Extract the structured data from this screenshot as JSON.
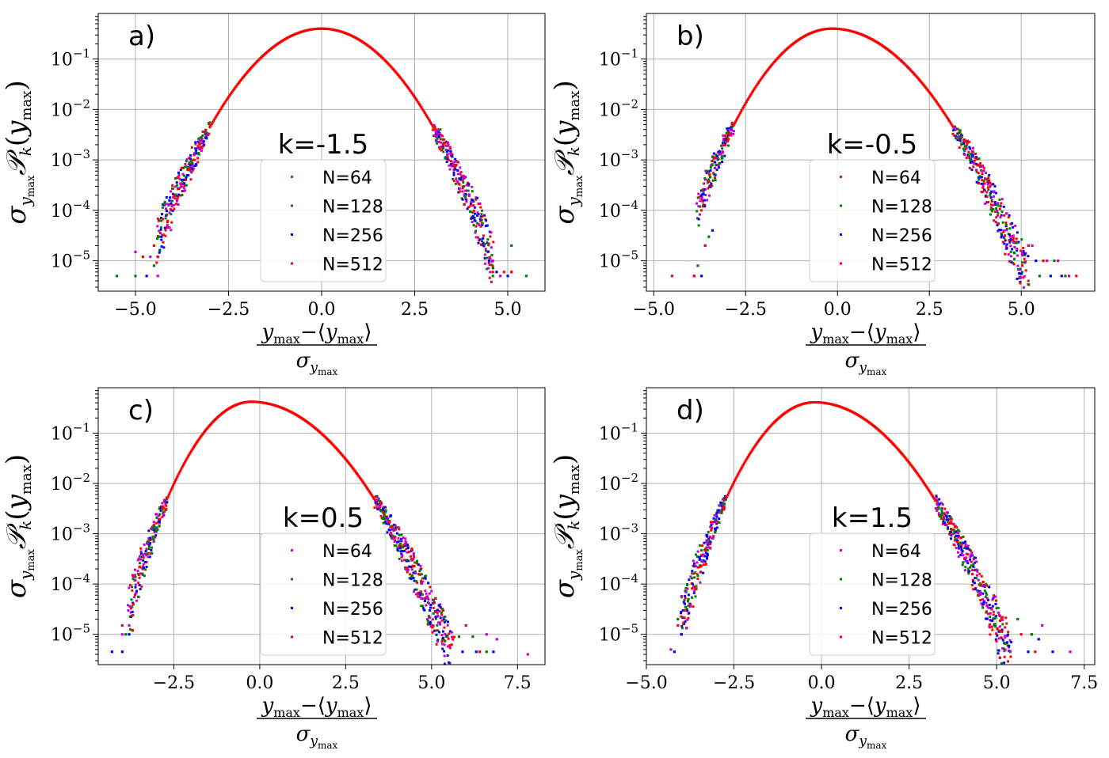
{
  "legend": [
    {
      "label": "N=64",
      "color": "#cc00cc"
    },
    {
      "label": "N=128",
      "color": "#008000"
    },
    {
      "label": "N=256",
      "color": "#0000ff"
    },
    {
      "label": "N=512",
      "color": "#ff0000"
    }
  ],
  "chart_data": [
    {
      "type": "scatter",
      "panel_label": "a)",
      "annotation": "k=-1.5",
      "xlabel": "(y_max − ⟨y_max⟩)/σ_ymax",
      "ylabel": "σ_ymax P_k(y_max)",
      "yscale": "log",
      "grid": true,
      "legend_position": "bottom-center",
      "xlim": [
        -6.0,
        6.0
      ],
      "ylim": [
        2.5e-06,
        0.8
      ],
      "xticks": [
        -5.0,
        -2.5,
        0.0,
        2.5,
        5.0
      ],
      "xtick_labels": [
        "−5.0",
        "−2.5",
        "0.0",
        "2.5",
        "5.0"
      ],
      "yticks": [
        1e-05,
        0.0001,
        0.001,
        0.01,
        0.1
      ],
      "ytick_labels": [
        "10−5",
        "10−4",
        "10−3",
        "10−2",
        "10−1"
      ],
      "curve": {
        "mode": 0.0,
        "left_width": 1.0,
        "right_width": 1.0,
        "peak": 0.4,
        "x_min": -4.4,
        "x_max": 4.6
      },
      "series": [
        {
          "name": "N=64",
          "x": [
            -5.0,
            -4.6,
            -4.4,
            4.6,
            4.8,
            5.1
          ],
          "y": [
            1.5e-05,
            1.2e-05,
            5e-06,
            1e-05,
            5e-06,
            6e-06
          ]
        },
        {
          "name": "N=128",
          "x": [
            -5.5,
            -5.0,
            -4.5,
            4.6,
            5.1,
            5.5
          ],
          "y": [
            5e-06,
            5e-06,
            8e-06,
            5e-06,
            2e-05,
            5e-06
          ]
        },
        {
          "name": "N=256",
          "x": [
            -4.7,
            -4.4,
            -4.3,
            4.5,
            4.7,
            5.0
          ],
          "y": [
            5e-06,
            1.2e-05,
            3e-05,
            1e-05,
            6e-06,
            5e-06
          ]
        },
        {
          "name": "N=512",
          "x": [
            -4.8,
            -4.5,
            -4.4,
            4.6,
            4.9,
            5.1
          ],
          "y": [
            1.2e-05,
            2e-05,
            1.2e-05,
            6e-06,
            6e-06,
            6e-06
          ]
        }
      ]
    },
    {
      "type": "scatter",
      "panel_label": "b)",
      "annotation": "k=-0.5",
      "xlabel": "(y_max − ⟨y_max⟩)/σ_ymax",
      "ylabel": "σ_ymax P_k(y_max)",
      "yscale": "log",
      "grid": true,
      "legend_position": "bottom-center",
      "xlim": [
        -5.2,
        7.0
      ],
      "ylim": [
        2.5e-06,
        0.8
      ],
      "xticks": [
        -5.0,
        -2.5,
        0.0,
        2.5,
        5.0
      ],
      "xtick_labels": [
        "−5.0",
        "−2.5",
        "0.0",
        "2.5",
        "5.0"
      ],
      "yticks": [
        1e-05,
        0.0001,
        0.001,
        0.01,
        0.1
      ],
      "ytick_labels": [
        "10−5",
        "10−4",
        "10−3",
        "10−2",
        "10−1"
      ],
      "curve": {
        "mode": -0.15,
        "left_width": 0.9,
        "right_width": 1.1,
        "peak": 0.4,
        "x_min": -3.8,
        "x_max": 5.4
      },
      "series": [
        {
          "name": "N=64",
          "x": [
            -3.9,
            -3.6,
            5.3,
            5.7,
            6.0,
            6.3
          ],
          "y": [
            5e-06,
            2e-05,
            2e-05,
            1e-05,
            1e-05,
            5e-06
          ]
        },
        {
          "name": "N=128",
          "x": [
            -3.8,
            -3.5,
            5.5,
            5.9,
            6.2
          ],
          "y": [
            8e-06,
            3e-05,
            5e-06,
            1e-05,
            5e-06
          ]
        },
        {
          "name": "N=256",
          "x": [
            -3.7,
            -3.4,
            5.4,
            5.8,
            6.1
          ],
          "y": [
            5e-06,
            4e-05,
            1e-05,
            5e-06,
            5e-06
          ]
        },
        {
          "name": "N=512",
          "x": [
            -4.5,
            -3.9,
            -3.6,
            5.2,
            5.6,
            6.5
          ],
          "y": [
            5e-06,
            5e-06,
            2e-05,
            2e-05,
            1e-05,
            5e-06
          ]
        }
      ]
    },
    {
      "type": "scatter",
      "panel_label": "c)",
      "annotation": "k=0.5",
      "xlabel": "(y_max − ⟨y_max⟩)/σ_ymax",
      "ylabel": "σ_ymax P_k(y_max)",
      "yscale": "log",
      "grid": true,
      "legend_position": "bottom-center",
      "xlim": [
        -4.7,
        8.3
      ],
      "ylim": [
        2.5e-06,
        0.8
      ],
      "xticks": [
        -2.5,
        0.0,
        2.5,
        5.0,
        7.5
      ],
      "xtick_labels": [
        "−2.5",
        "0.0",
        "2.5",
        "5.0",
        "7.5"
      ],
      "yticks": [
        1e-05,
        0.0001,
        0.001,
        0.01,
        0.1
      ],
      "ytick_labels": [
        "10−5",
        "10−4",
        "10−3",
        "10−2",
        "10−1"
      ],
      "curve": {
        "mode": -0.25,
        "left_width": 0.82,
        "right_width": 1.2,
        "peak": 0.42,
        "x_min": -3.8,
        "x_max": 6.2
      },
      "series": [
        {
          "name": "N=64",
          "x": [
            -4.0,
            -3.8,
            6.6,
            6.9,
            7.8
          ],
          "y": [
            1e-05,
            1.5e-05,
            1e-05,
            8e-06,
            4e-06
          ]
        },
        {
          "name": "N=128",
          "x": [
            -3.9,
            -3.7,
            5.8,
            6.2,
            6.6
          ],
          "y": [
            1e-05,
            1.2e-05,
            9e-06,
            9e-06,
            4.5e-06
          ]
        },
        {
          "name": "N=256",
          "x": [
            -4.3,
            -4.0,
            -3.8,
            5.9,
            6.3,
            6.8
          ],
          "y": [
            4.5e-06,
            4.5e-06,
            1e-05,
            4.5e-06,
            4.5e-06,
            4.5e-06
          ]
        },
        {
          "name": "N=512",
          "x": [
            -4.0,
            -3.7,
            6.0,
            6.4
          ],
          "y": [
            1.5e-05,
            1.2e-05,
            1.5e-05,
            4.5e-06
          ]
        }
      ]
    },
    {
      "type": "scatter",
      "panel_label": "d)",
      "annotation": "k=1.5",
      "xlabel": "(y_max − ⟨y_max⟩)/σ_ymax",
      "ylabel": "σ_ymax P_k(y_max)",
      "yscale": "log",
      "grid": true,
      "legend_position": "bottom-center",
      "xlim": [
        -5.0,
        7.8
      ],
      "ylim": [
        2.5e-06,
        0.8
      ],
      "xticks": [
        -5.0,
        -2.5,
        0.0,
        2.5,
        5.0,
        7.5
      ],
      "xtick_labels": [
        "−5.0",
        "−2.5",
        "0.0",
        "2.5",
        "5.0",
        "7.5"
      ],
      "yticks": [
        1e-05,
        0.0001,
        0.001,
        0.01,
        0.1
      ],
      "ytick_labels": [
        "10−5",
        "10−4",
        "10−3",
        "10−2",
        "10−1"
      ],
      "curve": {
        "mode": -0.2,
        "left_width": 0.85,
        "right_width": 1.15,
        "peak": 0.41,
        "x_min": -4.0,
        "x_max": 5.8
      },
      "series": [
        {
          "name": "N=64",
          "x": [
            -4.3,
            -4.0,
            6.0,
            6.3,
            7.1
          ],
          "y": [
            5e-06,
            1e-05,
            1e-05,
            1.5e-05,
            4.5e-06
          ]
        },
        {
          "name": "N=128",
          "x": [
            -4.1,
            -3.8,
            5.6,
            6.0
          ],
          "y": [
            2e-05,
            5e-05,
            2e-05,
            1e-05
          ]
        },
        {
          "name": "N=256",
          "x": [
            -4.2,
            -4.0,
            5.9,
            6.2,
            6.6
          ],
          "y": [
            4.5e-06,
            1e-05,
            4.5e-06,
            8e-06,
            4.5e-06
          ]
        },
        {
          "name": "N=512",
          "x": [
            -4.1,
            -3.9,
            5.7,
            6.1
          ],
          "y": [
            1.5e-05,
            3e-05,
            1e-05,
            4.5e-06
          ]
        }
      ]
    }
  ]
}
